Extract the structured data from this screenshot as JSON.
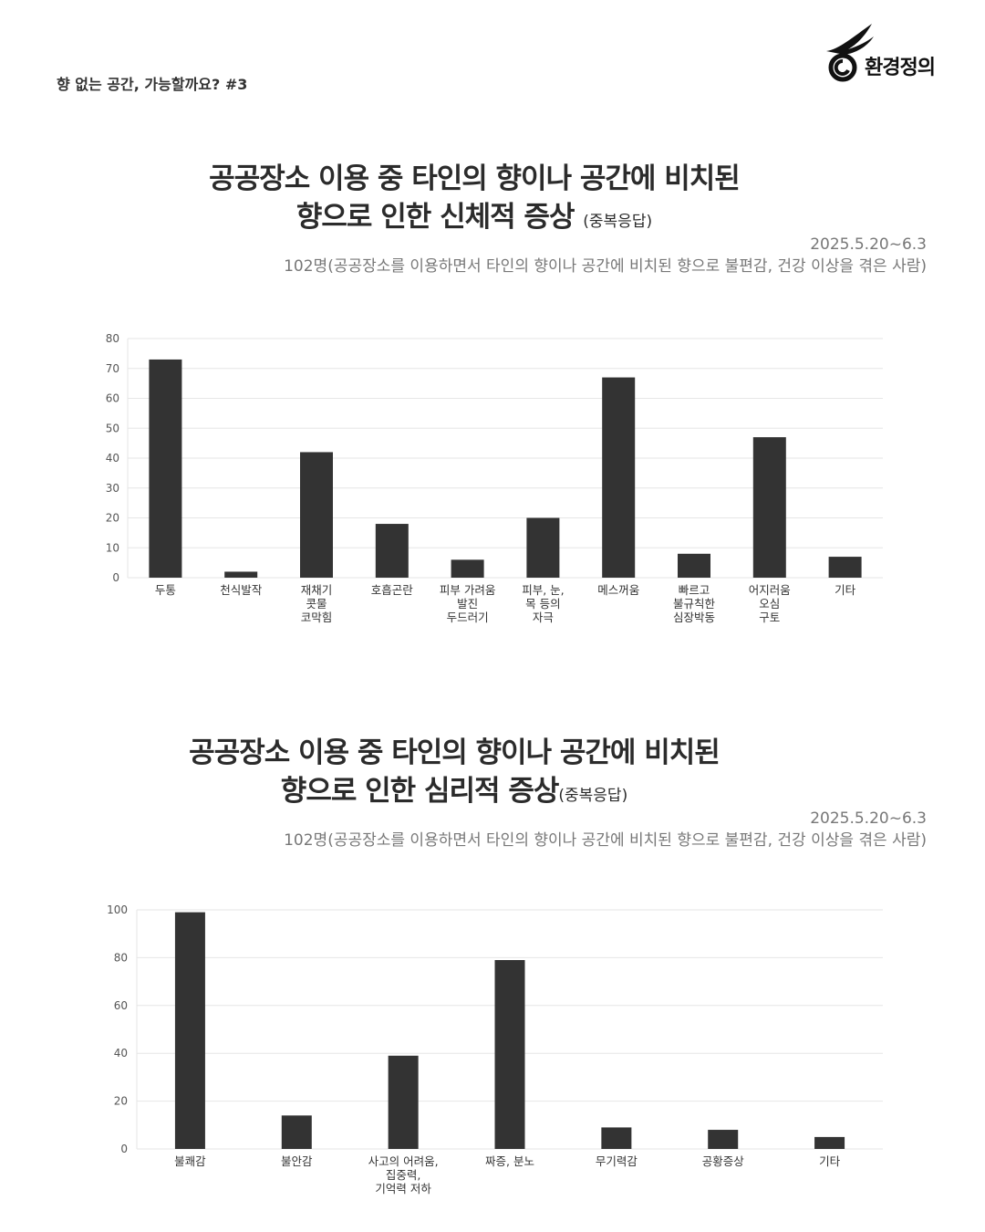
{
  "header": {
    "series_label": "향 없는 공간, 가능할까요? #3"
  },
  "logo": {
    "text": "환경정의",
    "icon": "bird-logo-icon"
  },
  "colors": {
    "bar": "#333333",
    "grid": "#e6e6e6",
    "axis_text": "#555555"
  },
  "sections": [
    {
      "title_line1": "공공장소 이용 중 타인의 향이나 공간에 비치된",
      "title_line2": "향으로 인한 신체적 증상",
      "title_note": "(중복응답)",
      "date": "2025.5.20~6.3",
      "respondents": "102명(공공장소를 이용하면서 타인의 향이나 공간에 비치된 향으로 불편감, 건강 이상을 겪은 사람)"
    },
    {
      "title_line1": "공공장소 이용 중 타인의 향이나 공간에 비치된",
      "title_line2": "향으로 인한 심리적 증상",
      "title_note": "(중복응답)",
      "date": "2025.5.20~6.3",
      "respondents": "102명(공공장소를 이용하면서 타인의 향이나 공간에 비치된 향으로 불편감, 건강 이상을 겪은 사람)"
    }
  ],
  "chart_data": [
    {
      "type": "bar",
      "categories": [
        [
          "두통"
        ],
        [
          "천식발작"
        ],
        [
          "재채기",
          "콧물",
          "코막힘"
        ],
        [
          "호흡곤란"
        ],
        [
          "피부 가려움",
          "발진",
          "두드러기"
        ],
        [
          "피부, 눈,",
          "목 등의",
          "자극"
        ],
        [
          "메스꺼움"
        ],
        [
          "빠르고",
          "불규칙한",
          "심장박동"
        ],
        [
          "어지러움",
          "오심",
          "구토"
        ],
        [
          "기타"
        ]
      ],
      "values": [
        73,
        2,
        42,
        18,
        6,
        20,
        67,
        8,
        47,
        7
      ],
      "ylim": [
        0,
        80
      ],
      "yticks": [
        0,
        10,
        20,
        30,
        40,
        50,
        60,
        70,
        80
      ],
      "grid": true
    },
    {
      "type": "bar",
      "categories": [
        [
          "불쾌감"
        ],
        [
          "불안감"
        ],
        [
          "사고의 어려움,",
          "집중력,",
          "기억력 저하"
        ],
        [
          "짜증, 분노"
        ],
        [
          "무기력감"
        ],
        [
          "공황증상"
        ],
        [
          "기타"
        ]
      ],
      "values": [
        99,
        14,
        39,
        79,
        9,
        8,
        5
      ],
      "ylim": [
        0,
        100
      ],
      "yticks": [
        0,
        20,
        40,
        60,
        80,
        100
      ],
      "grid": true
    }
  ]
}
